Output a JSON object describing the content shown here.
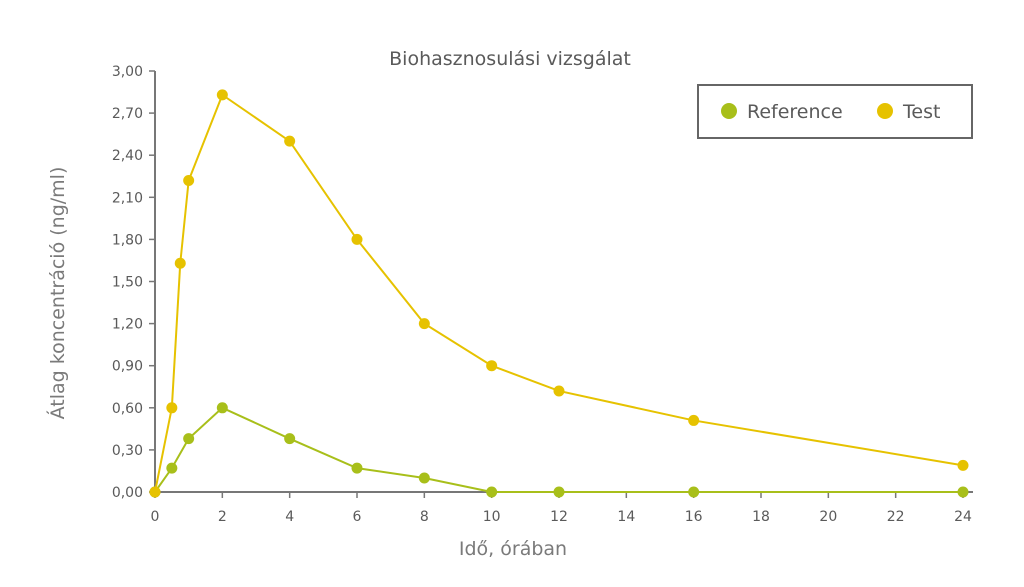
{
  "chart_data": {
    "type": "line",
    "title": "Biohasznosulási vizsgálat",
    "xlabel": "Idő, órában",
    "ylabel": "Átlag koncentráció (ng/ml)",
    "xlim": [
      0,
      24
    ],
    "ylim": [
      0,
      3
    ],
    "x_ticks": [
      0,
      2,
      4,
      6,
      8,
      10,
      12,
      14,
      16,
      18,
      20,
      22,
      24
    ],
    "y_ticks": [
      "0,00",
      "0,30",
      "0,60",
      "0,90",
      "1,20",
      "1,50",
      "1,80",
      "2,10",
      "2,40",
      "2,70",
      "3,00"
    ],
    "legend_position": "top-right",
    "grid": false,
    "series": [
      {
        "name": "Reference",
        "color": "#a8bf1a",
        "x": [
          0,
          0.5,
          1,
          2,
          4,
          6,
          8,
          10,
          12,
          16,
          24
        ],
        "y": [
          0,
          0.17,
          0.38,
          0.6,
          0.38,
          0.17,
          0.1,
          0,
          0,
          0,
          0
        ]
      },
      {
        "name": "Test",
        "color": "#e6c200",
        "x": [
          0,
          0.5,
          0.75,
          1,
          2,
          4,
          6,
          8,
          10,
          12,
          16,
          24
        ],
        "y": [
          0,
          0.6,
          1.63,
          2.22,
          2.83,
          2.5,
          1.8,
          1.2,
          0.9,
          0.72,
          0.51,
          0.19
        ]
      }
    ]
  }
}
